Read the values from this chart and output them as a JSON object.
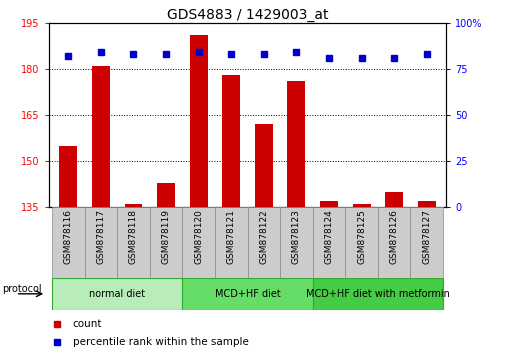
{
  "title": "GDS4883 / 1429003_at",
  "samples": [
    "GSM878116",
    "GSM878117",
    "GSM878118",
    "GSM878119",
    "GSM878120",
    "GSM878121",
    "GSM878122",
    "GSM878123",
    "GSM878124",
    "GSM878125",
    "GSM878126",
    "GSM878127"
  ],
  "counts": [
    155,
    181,
    136,
    143,
    191,
    178,
    162,
    176,
    137,
    136,
    140,
    137
  ],
  "percentile_ranks": [
    82,
    84,
    83,
    83,
    84,
    83,
    83,
    84,
    81,
    81,
    81,
    83
  ],
  "ylim_left": [
    135,
    195
  ],
  "ylim_right": [
    0,
    100
  ],
  "yticks_left": [
    135,
    150,
    165,
    180,
    195
  ],
  "yticks_right": [
    0,
    25,
    50,
    75,
    100
  ],
  "groups": [
    {
      "label": "normal diet",
      "start": 0,
      "end": 4,
      "color": "#b8ecb8"
    },
    {
      "label": "MCD+HF diet",
      "start": 4,
      "end": 8,
      "color": "#66dd66"
    },
    {
      "label": "MCD+HF diet with metformin",
      "start": 8,
      "end": 12,
      "color": "#44cc44"
    }
  ],
  "bar_color": "#cc0000",
  "dot_color": "#0000cc",
  "bar_width": 0.55,
  "grid_linestyle": "dotted",
  "legend_bar_label": "count",
  "legend_dot_label": "percentile rank within the sample",
  "protocol_label": "protocol",
  "title_fontsize": 10,
  "tick_fontsize": 7,
  "label_fontsize": 8,
  "sample_box_color": "#cccccc",
  "sample_box_edge": "#888888"
}
